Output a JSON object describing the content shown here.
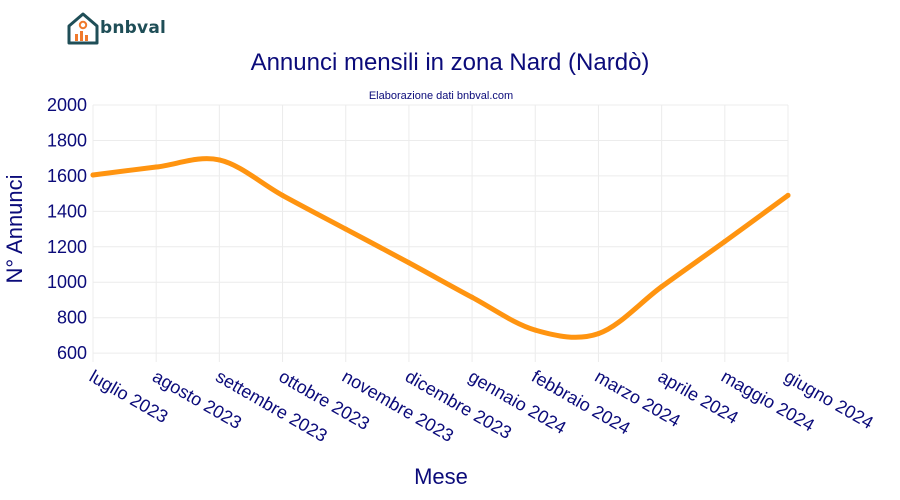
{
  "brand": {
    "name": "bnbval"
  },
  "chart_data": {
    "type": "line",
    "title": "Annunci mensili in zona Nard (Nardò)",
    "subtitle": "Elaborazione dati bnbval.com",
    "xlabel": "Mese",
    "ylabel": "N° Annunci",
    "categories": [
      "luglio 2023",
      "agosto 2023",
      "settembre 2023",
      "ottobre 2023",
      "novembre 2023",
      "dicembre 2023",
      "gennaio 2024",
      "febbraio 2024",
      "marzo 2024",
      "aprile 2024",
      "maggio 2024",
      "giugno 2024"
    ],
    "series": [
      {
        "values": [
          1605,
          1650,
          1690,
          1490,
          1300,
          1110,
          915,
          730,
          710,
          975,
          1230,
          1490
        ],
        "color": "#ff9410"
      }
    ],
    "ylim": [
      550,
      2000
    ],
    "yticks": [
      600,
      800,
      1000,
      1200,
      1400,
      1600,
      1800,
      2000
    ],
    "grid": true,
    "legend": "none"
  }
}
